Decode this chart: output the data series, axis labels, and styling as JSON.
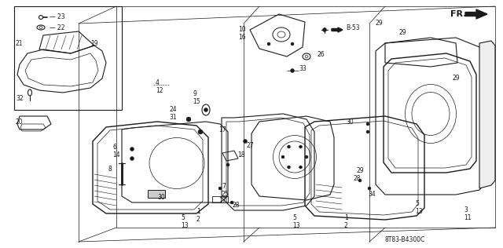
{
  "background_color": "#ffffff",
  "diagram_color": "#000000",
  "part_number_label": "8T83-B4300C",
  "figsize": [
    6.4,
    3.16
  ],
  "dpi": 100
}
